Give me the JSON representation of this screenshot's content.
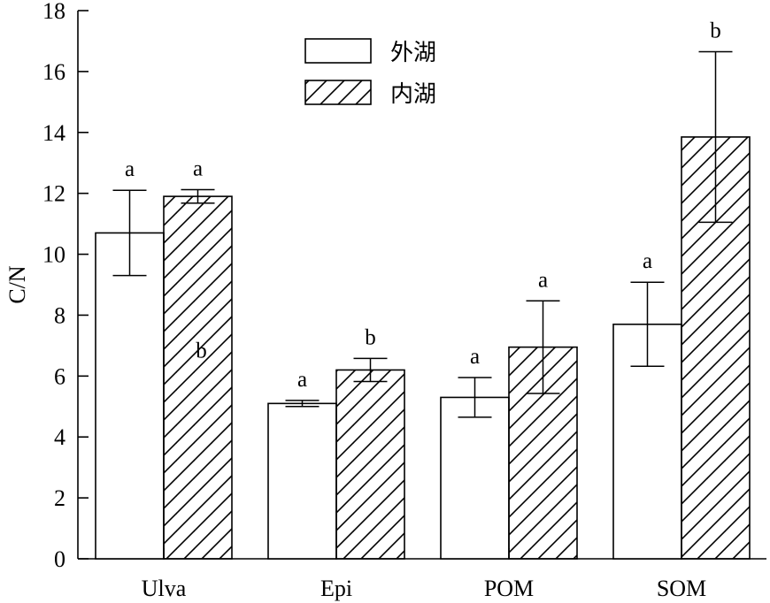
{
  "chart_data": {
    "type": "bar",
    "categories": [
      "Ulva",
      "Epi",
      "POM",
      "SOM"
    ],
    "ylabel": "C/N",
    "xlabel": "",
    "ylim": [
      0,
      18
    ],
    "yticks": [
      0,
      2,
      4,
      6,
      8,
      10,
      12,
      14,
      16,
      18
    ],
    "grid": false,
    "legend_placement": "top-center",
    "series": [
      {
        "name": "外湖",
        "pattern": "solid-white",
        "values": [
          10.7,
          5.1,
          5.3,
          7.7
        ],
        "errors": [
          1.4,
          0.1,
          0.65,
          1.38
        ],
        "letters": [
          "a",
          "a",
          "a",
          "a"
        ]
      },
      {
        "name": "内湖",
        "pattern": "diagonal-hatch",
        "values": [
          11.9,
          6.2,
          6.95,
          13.85
        ],
        "errors": [
          0.22,
          0.38,
          1.52,
          2.8
        ],
        "letters": [
          "a",
          "b",
          "a",
          "b"
        ]
      }
    ],
    "annotations": [
      {
        "text": "b",
        "category": "Ulva",
        "y": 6.6
      }
    ]
  }
}
